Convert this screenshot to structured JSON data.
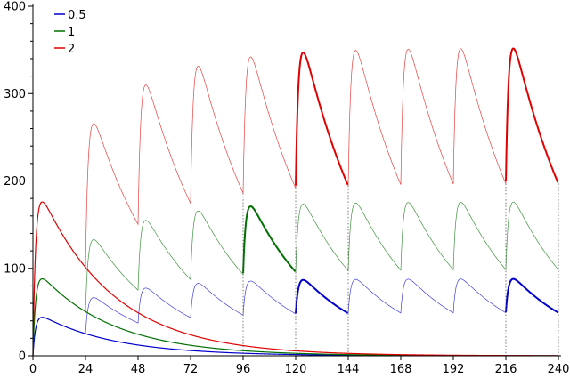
{
  "chart_data": {
    "type": "line",
    "xlim": [
      0,
      240
    ],
    "ylim": [
      0,
      400
    ],
    "x_ticks": [
      0,
      24,
      48,
      72,
      96,
      120,
      144,
      168,
      192,
      216,
      240
    ],
    "y_ticks": [
      0,
      100,
      200,
      300,
      400
    ],
    "legend_position": "top-left",
    "grid": false,
    "dose_times": [
      0,
      24,
      48,
      72,
      96,
      120,
      144,
      168,
      192,
      216
    ],
    "series": [
      {
        "name": "0.5",
        "color": "#0000cc",
        "peak_first_dose": 44,
        "peak_steady_state": 93,
        "trough_steady_state": 52,
        "single_dose_value_at_240": 0
      },
      {
        "name": "1",
        "color": "#007000",
        "peak_first_dose": 88,
        "peak_steady_state": 172,
        "trough_steady_state": 95,
        "single_dose_value_at_240": 2
      },
      {
        "name": "2",
        "color": "#e00000",
        "peak_first_dose": 176,
        "peak_steady_state": 351,
        "trough_steady_state": 194,
        "single_dose_value_at_240": 4
      }
    ],
    "highlighted_intervals": [
      {
        "series": "1",
        "from": 96,
        "to": 120
      },
      {
        "series": "0.5",
        "from": 120,
        "to": 144
      },
      {
        "series": "2",
        "from": 120,
        "to": 144
      },
      {
        "series": "0.5",
        "from": 216,
        "to": 240
      },
      {
        "series": "2",
        "from": 216,
        "to": 240
      }
    ],
    "guide_lines_x": [
      96,
      120,
      144,
      216,
      240
    ]
  }
}
